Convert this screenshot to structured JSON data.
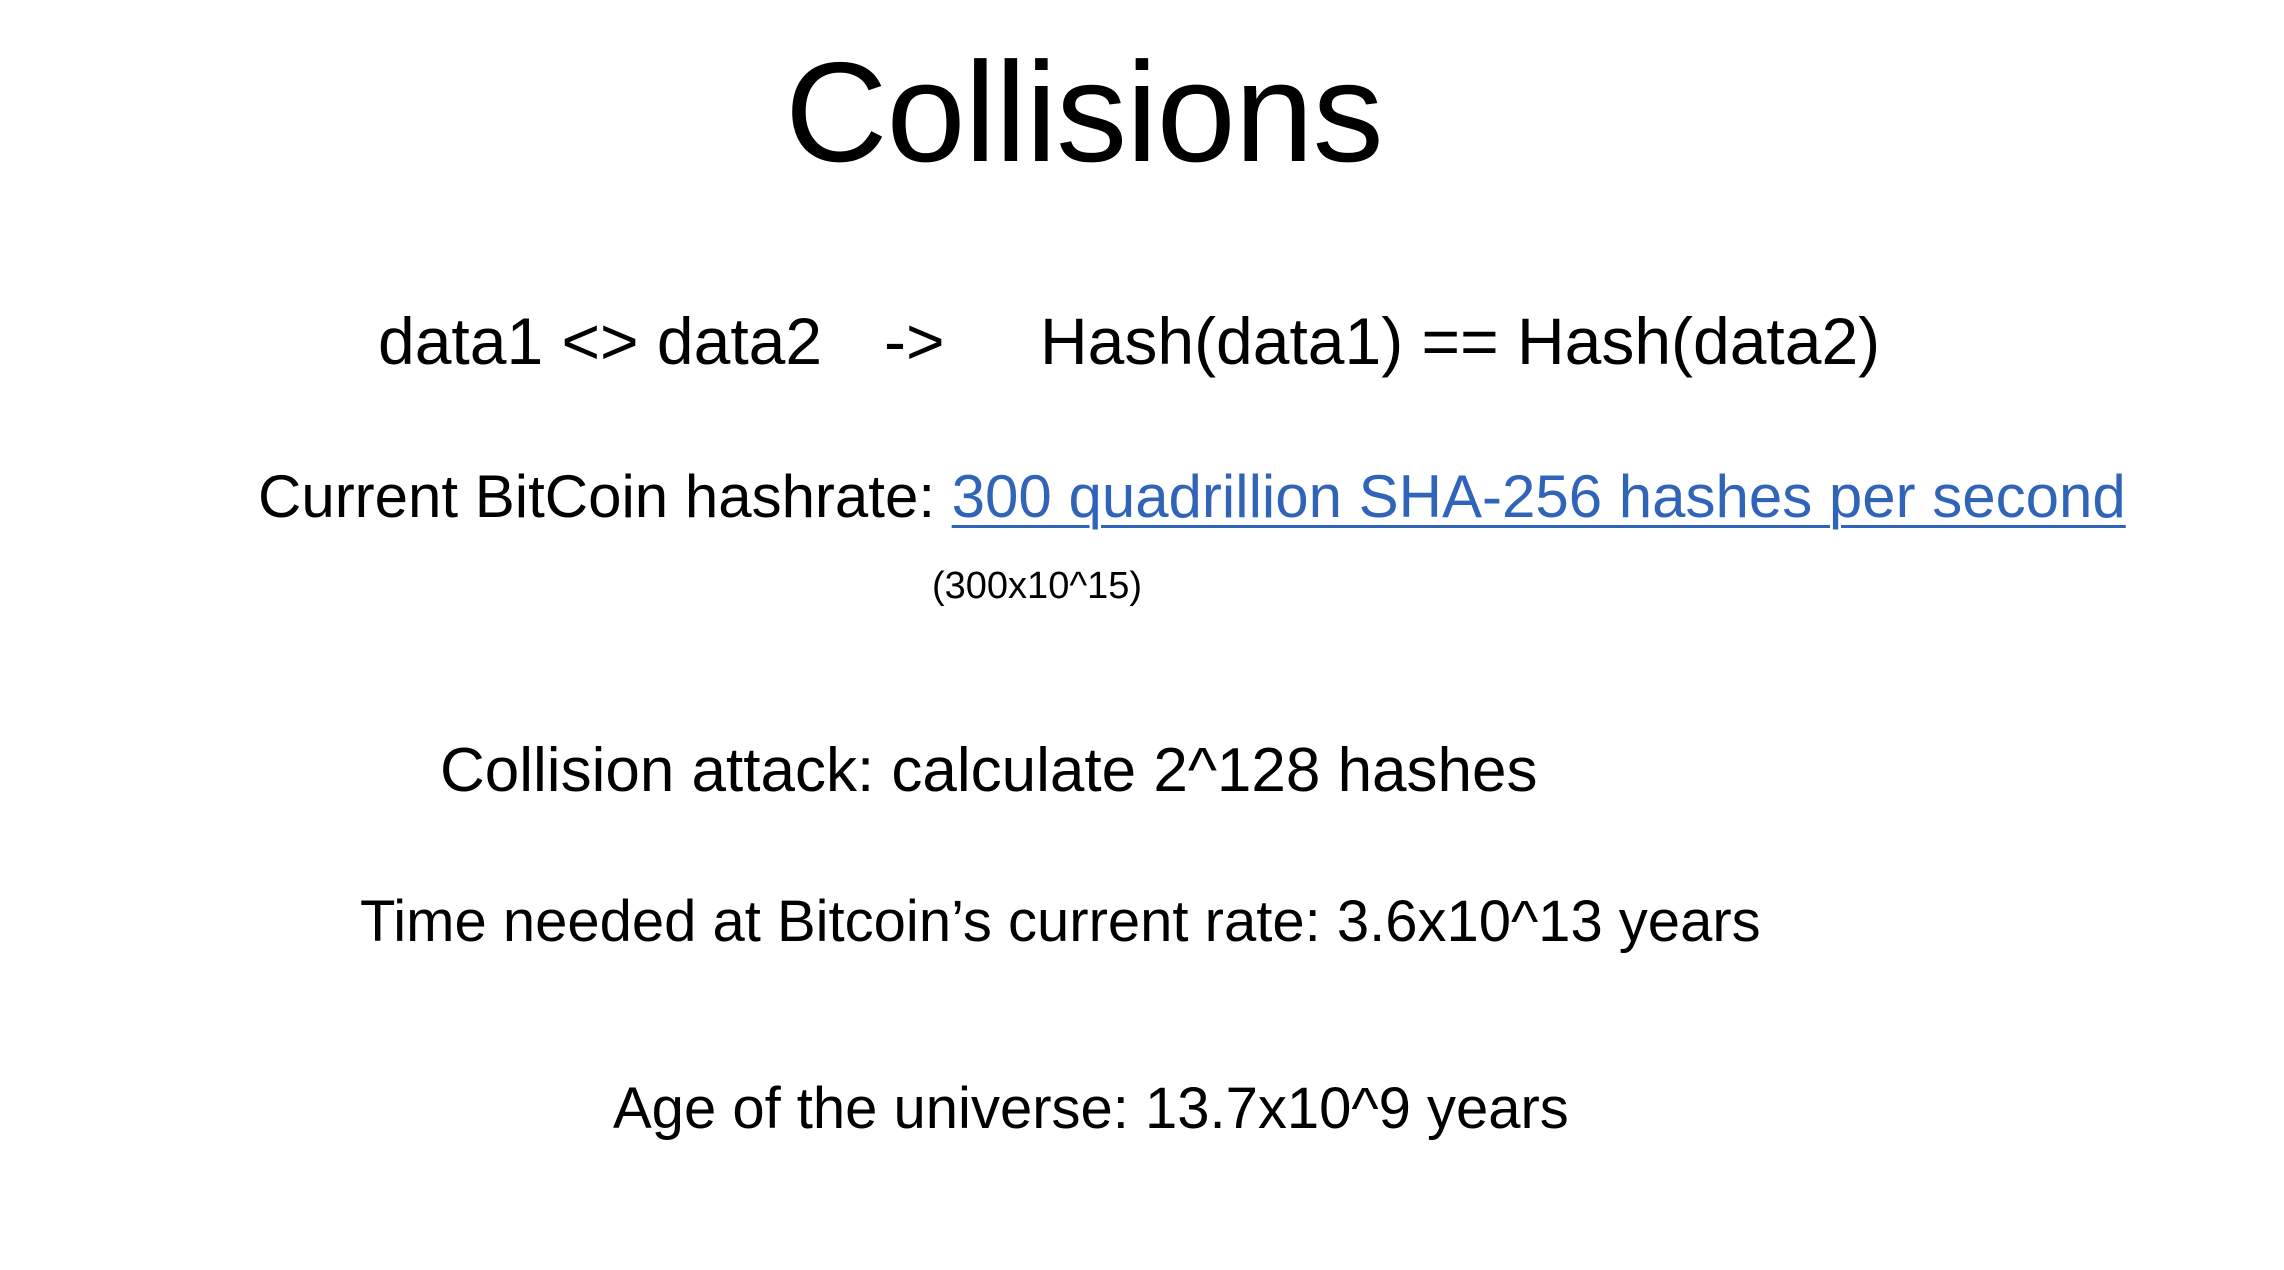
{
  "slide": {
    "title": "Collisions",
    "collision_definition": {
      "left": "data1 <> data2",
      "arrow": "->",
      "right": "Hash(data1) == Hash(data2)"
    },
    "hashrate": {
      "label": "Current BitCoin hashrate: ",
      "link_text": "300 quadrillion SHA-256 hashes per second",
      "note": "(300x10^15)"
    },
    "collision_attack": "Collision attack: calculate 2^128 hashes",
    "time_needed": "Time needed at Bitcoin’s current rate: 3.6x10^13 years",
    "universe_age": "Age of the universe: 13.7x10^9 years",
    "colors": {
      "link": "#2f64b8",
      "text": "#000000",
      "background": "#ffffff"
    }
  }
}
